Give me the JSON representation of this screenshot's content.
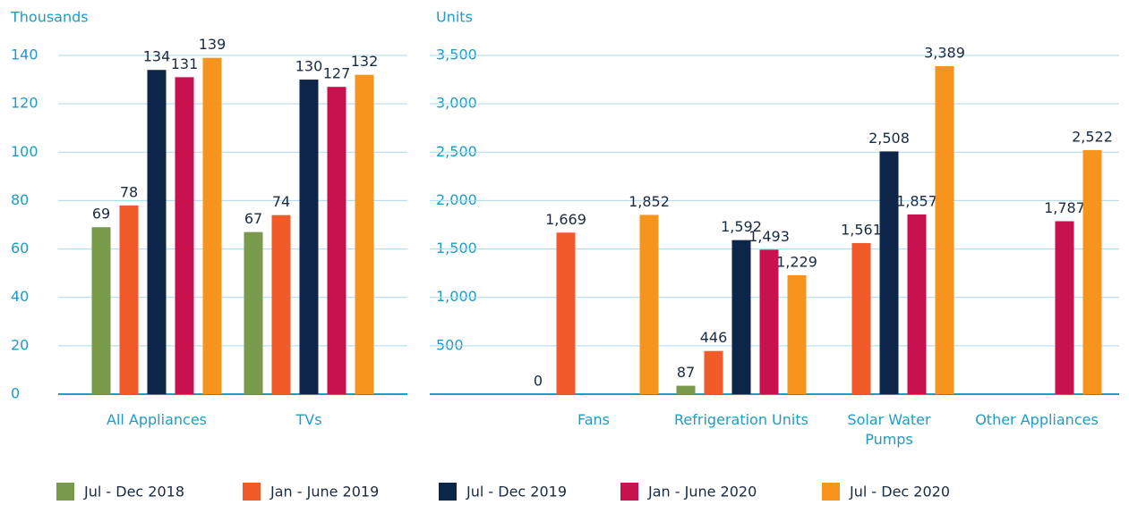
{
  "chart_data": [
    {
      "type": "bar",
      "y_label": "Thousands",
      "categories": [
        "All Appliances",
        "TVs"
      ],
      "ylim": [
        0,
        140
      ],
      "yticks": [
        0,
        20,
        40,
        60,
        80,
        100,
        120,
        140
      ],
      "grid": true,
      "series": [
        {
          "name": "Jul - Dec 2018",
          "color": "#7a9a4b",
          "values": [
            69,
            67
          ]
        },
        {
          "name": "Jan - June 2019",
          "color": "#f15a29",
          "values": [
            78,
            74
          ]
        },
        {
          "name": "Jul - Dec 2019",
          "color": "#0d2548",
          "values": [
            134,
            130
          ]
        },
        {
          "name": "Jan - June 2020",
          "color": "#c8114f",
          "values": [
            131,
            127
          ]
        },
        {
          "name": "Jul - Dec 2020",
          "color": "#f7941d",
          "values": [
            139,
            132
          ]
        }
      ]
    },
    {
      "type": "bar",
      "y_label": "Units",
      "categories": [
        "Fans",
        "Refrigeration Units",
        "Solar Water Pumps",
        "Other Appliances"
      ],
      "ylim": [
        0,
        3500
      ],
      "yticks": [
        {
          "value": 500,
          "label": "500"
        },
        {
          "value": 1000,
          "label": "1,000"
        },
        {
          "value": 1500,
          "label": "1,500"
        },
        {
          "value": 2000,
          "label": "2,000"
        },
        {
          "value": 2500,
          "label": "2,500"
        },
        {
          "value": 3000,
          "label": "3,000"
        },
        {
          "value": 3500,
          "label": "3,500"
        }
      ],
      "grid": true,
      "series": [
        {
          "color": "#7a9a4b",
          "values": [
            0,
            87,
            null,
            null
          ],
          "value_labels": [
            "0",
            "87",
            null,
            null
          ]
        },
        {
          "color": "#f15a29",
          "values": [
            1669,
            446,
            1561,
            null
          ],
          "value_labels": [
            "1,669",
            "446",
            "1,561",
            null
          ]
        },
        {
          "color": "#0d2548",
          "values": [
            null,
            1592,
            2508,
            null
          ],
          "value_labels": [
            null,
            "1,592",
            "2,508",
            null
          ]
        },
        {
          "color": "#c8114f",
          "values": [
            null,
            1493,
            1857,
            1787
          ],
          "value_labels": [
            null,
            "1,493",
            "1,857",
            "1,787"
          ]
        },
        {
          "color": "#f7941d",
          "values": [
            1852,
            1229,
            3389,
            2522
          ],
          "value_labels": [
            "1,852",
            "1,229",
            "3,389",
            "2,522"
          ]
        }
      ]
    }
  ]
}
